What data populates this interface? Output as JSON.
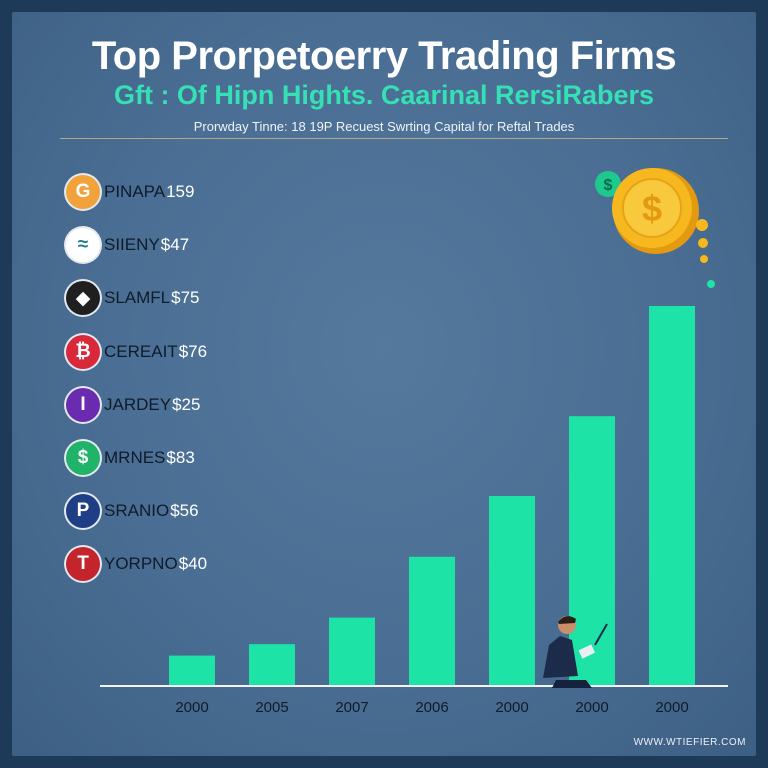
{
  "header": {
    "title": "Top Prorpetoerry Trading Firms",
    "subtitle": "Gft : Of Hipn Hights. Caarinal RersiRabers",
    "caption": "Prorwday Tinne: 18 19P Recuest Swrting Capital for Reftal Trades"
  },
  "firms": [
    {
      "name": "PINAPA",
      "value": "159",
      "logo_glyph": "G",
      "logo_color": "#f2a23a",
      "icon": "g-logo-icon"
    },
    {
      "name": "SIIENY",
      "value": "$47",
      "logo_glyph": "≈",
      "logo_color": "#ffffff",
      "icon": "wave-logo-icon"
    },
    {
      "name": "SLAMFL",
      "value": "$75",
      "logo_glyph": "◆",
      "logo_color": "#1f1f1f",
      "icon": "face-logo-icon"
    },
    {
      "name": "CEREAIT",
      "value": "$76",
      "logo_glyph": "₿",
      "logo_color": "#d8283a",
      "icon": "bitcoin-logo-icon"
    },
    {
      "name": "JARDEY",
      "value": "$25",
      "logo_glyph": "I",
      "logo_color": "#6a2bb0",
      "icon": "i-logo-icon"
    },
    {
      "name": "MRNES",
      "value": "$83",
      "logo_glyph": "$",
      "logo_color": "#22b36a",
      "icon": "dollar-logo-icon"
    },
    {
      "name": "SRANIO",
      "value": "$56",
      "logo_glyph": "P",
      "logo_color": "#1e3f86",
      "icon": "p-logo-icon"
    },
    {
      "name": "YORPNO",
      "value": "$40",
      "logo_glyph": "T",
      "logo_color": "#c4242c",
      "icon": "t-logo-icon"
    }
  ],
  "colors": {
    "bar": "#1ee3a6",
    "axis": "#f2f4f7",
    "coin": "#f6b81e",
    "accent": "#34e0b4"
  },
  "chart_data": {
    "type": "bar",
    "categories": [
      "2000",
      "2005",
      "2007",
      "2006",
      "2000",
      "2000",
      "2000"
    ],
    "values": [
      8,
      11,
      18,
      34,
      50,
      71,
      100
    ],
    "ylim": [
      0,
      100
    ],
    "xlabel": "",
    "ylabel": "",
    "grid": false
  },
  "watermark": "WWW.WTIEFIER.COM"
}
